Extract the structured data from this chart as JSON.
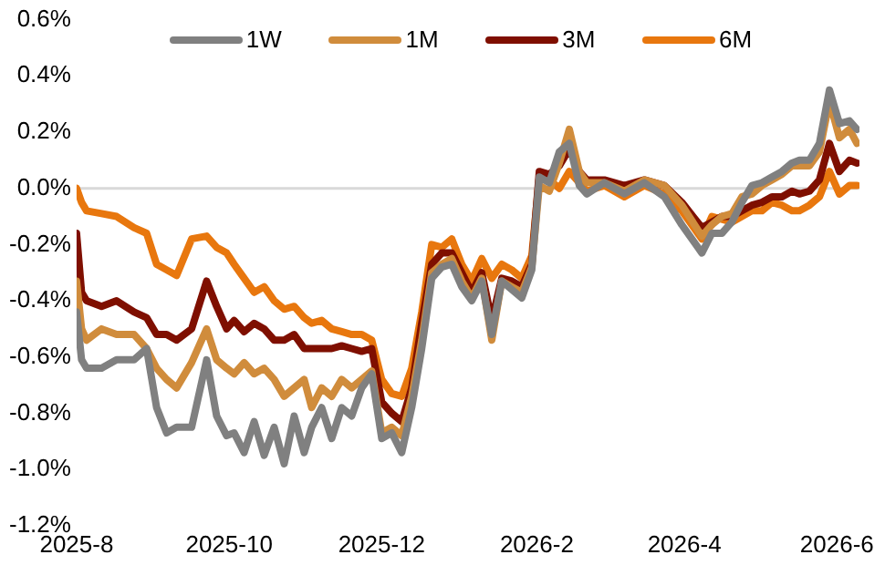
{
  "chart_data": {
    "type": "line",
    "x": [
      "2025-08-01",
      "2025-08-03",
      "2025-08-05",
      "2025-08-11",
      "2025-08-17",
      "2025-08-24",
      "2025-08-29",
      "2025-09-02",
      "2025-09-06",
      "2025-09-10",
      "2025-09-16",
      "2025-09-22",
      "2025-09-26",
      "2025-09-30",
      "2025-10-03",
      "2025-10-07",
      "2025-10-11",
      "2025-10-15",
      "2025-10-19",
      "2025-10-23",
      "2025-10-27",
      "2025-10-31",
      "2025-11-03",
      "2025-11-07",
      "2025-11-11",
      "2025-11-15",
      "2025-11-19",
      "2025-11-23",
      "2025-11-27",
      "2025-12-01",
      "2025-12-05",
      "2025-12-09",
      "2025-12-13",
      "2025-12-17",
      "2025-12-21",
      "2025-12-25",
      "2025-12-29",
      "2026-01-02",
      "2026-01-06",
      "2026-01-10",
      "2026-01-14",
      "2026-01-18",
      "2026-01-22",
      "2026-01-26",
      "2026-01-30",
      "2026-02-02",
      "2026-02-06",
      "2026-02-10",
      "2026-02-14",
      "2026-02-18",
      "2026-02-21",
      "2026-02-28",
      "2026-03-08",
      "2026-03-16",
      "2026-03-24",
      "2026-03-31",
      "2026-04-08",
      "2026-04-12",
      "2026-04-16",
      "2026-04-20",
      "2026-04-24",
      "2026-04-28",
      "2026-05-02",
      "2026-05-06",
      "2026-05-10",
      "2026-05-14",
      "2026-05-17",
      "2026-05-21",
      "2026-05-25",
      "2026-05-29",
      "2026-06-02",
      "2026-06-06",
      "2026-06-09"
    ],
    "series": [
      {
        "name": "1W",
        "color": "#808080",
        "values": [
          -0.44,
          -0.61,
          -0.64,
          -0.64,
          -0.61,
          -0.61,
          -0.57,
          -0.78,
          -0.87,
          -0.85,
          -0.85,
          -0.61,
          -0.81,
          -0.88,
          -0.87,
          -0.94,
          -0.83,
          -0.95,
          -0.85,
          -0.98,
          -0.81,
          -0.94,
          -0.85,
          -0.78,
          -0.89,
          -0.78,
          -0.81,
          -0.71,
          -0.66,
          -0.89,
          -0.87,
          -0.94,
          -0.78,
          -0.57,
          -0.32,
          -0.28,
          -0.27,
          -0.35,
          -0.4,
          -0.33,
          -0.52,
          -0.33,
          -0.36,
          -0.39,
          -0.29,
          0.04,
          0.02,
          0.13,
          0.16,
          0.01,
          -0.02,
          0.02,
          -0.02,
          0.02,
          -0.03,
          -0.13,
          -0.23,
          -0.16,
          -0.16,
          -0.12,
          -0.05,
          0.01,
          0.02,
          0.04,
          0.06,
          0.09,
          0.1,
          0.1,
          0.16,
          0.35,
          0.23,
          0.24,
          0.21
        ]
      },
      {
        "name": "1M",
        "color": "#d08c3c",
        "values": [
          -0.33,
          -0.5,
          -0.54,
          -0.5,
          -0.52,
          -0.52,
          -0.57,
          -0.64,
          -0.68,
          -0.71,
          -0.62,
          -0.5,
          -0.61,
          -0.64,
          -0.66,
          -0.62,
          -0.66,
          -0.64,
          -0.68,
          -0.74,
          -0.71,
          -0.68,
          -0.78,
          -0.71,
          -0.74,
          -0.68,
          -0.71,
          -0.68,
          -0.65,
          -0.87,
          -0.85,
          -0.88,
          -0.74,
          -0.54,
          -0.3,
          -0.27,
          -0.25,
          -0.33,
          -0.39,
          -0.32,
          -0.54,
          -0.33,
          -0.35,
          -0.37,
          -0.28,
          0.01,
          -0.01,
          0.09,
          0.21,
          0.06,
          0.02,
          0.02,
          -0.01,
          0.03,
          0.01,
          -0.06,
          -0.17,
          -0.13,
          -0.1,
          -0.09,
          -0.03,
          -0.02,
          0.01,
          0.03,
          0.05,
          0.08,
          0.08,
          0.08,
          0.13,
          0.31,
          0.18,
          0.21,
          0.16
        ]
      },
      {
        "name": "3M",
        "color": "#7f0f00",
        "values": [
          -0.16,
          -0.37,
          -0.4,
          -0.42,
          -0.4,
          -0.44,
          -0.46,
          -0.52,
          -0.52,
          -0.54,
          -0.5,
          -0.33,
          -0.42,
          -0.5,
          -0.47,
          -0.51,
          -0.48,
          -0.5,
          -0.54,
          -0.54,
          -0.52,
          -0.57,
          -0.57,
          -0.57,
          -0.57,
          -0.56,
          -0.57,
          -0.58,
          -0.57,
          -0.76,
          -0.8,
          -0.83,
          -0.71,
          -0.48,
          -0.27,
          -0.23,
          -0.23,
          -0.3,
          -0.37,
          -0.3,
          -0.47,
          -0.32,
          -0.33,
          -0.35,
          -0.27,
          0.06,
          0.05,
          0.08,
          0.14,
          0.06,
          0.03,
          0.03,
          0.01,
          0.03,
          0.01,
          -0.05,
          -0.14,
          -0.12,
          -0.1,
          -0.1,
          -0.08,
          -0.06,
          -0.05,
          -0.03,
          -0.03,
          -0.01,
          -0.02,
          -0.01,
          0.03,
          0.16,
          0.06,
          0.1,
          0.09
        ]
      },
      {
        "name": "6M",
        "color": "#e8770e",
        "values": [
          0.0,
          -0.05,
          -0.08,
          -0.09,
          -0.1,
          -0.14,
          -0.16,
          -0.27,
          -0.29,
          -0.31,
          -0.18,
          -0.17,
          -0.21,
          -0.23,
          -0.27,
          -0.32,
          -0.37,
          -0.35,
          -0.4,
          -0.43,
          -0.42,
          -0.46,
          -0.48,
          -0.47,
          -0.5,
          -0.51,
          -0.52,
          -0.52,
          -0.54,
          -0.68,
          -0.73,
          -0.74,
          -0.64,
          -0.44,
          -0.2,
          -0.21,
          -0.18,
          -0.27,
          -0.33,
          -0.25,
          -0.32,
          -0.27,
          -0.29,
          -0.32,
          -0.24,
          0.04,
          0.03,
          0.0,
          0.06,
          0.02,
          -0.01,
          0.01,
          -0.03,
          0.01,
          -0.02,
          -0.08,
          -0.18,
          -0.1,
          -0.11,
          -0.12,
          -0.1,
          -0.08,
          -0.08,
          -0.05,
          -0.06,
          -0.08,
          -0.08,
          -0.06,
          -0.03,
          0.06,
          -0.02,
          0.01,
          0.01
        ]
      }
    ],
    "xlim": [
      "2025-08-01",
      "2026-06-10"
    ],
    "xticks": [
      {
        "value": "2025-08-01",
        "label": "2025-8"
      },
      {
        "value": "2025-10-01",
        "label": "2025-10"
      },
      {
        "value": "2025-12-01",
        "label": "2025-12"
      },
      {
        "value": "2026-02-01",
        "label": "2026-2"
      },
      {
        "value": "2026-04-01",
        "label": "2026-4"
      },
      {
        "value": "2026-06-01",
        "label": "2026-6"
      }
    ],
    "ylim": [
      -1.2,
      0.6
    ],
    "yticks": [
      {
        "value": 0.6,
        "label": "0.6%"
      },
      {
        "value": 0.4,
        "label": "0.4%"
      },
      {
        "value": 0.2,
        "label": "0.2%"
      },
      {
        "value": 0.0,
        "label": "0.0%"
      },
      {
        "value": -0.2,
        "label": "-0.2%"
      },
      {
        "value": -0.4,
        "label": "-0.4%"
      },
      {
        "value": -0.6,
        "label": "-0.6%"
      },
      {
        "value": -0.8,
        "label": "-0.8%"
      },
      {
        "value": -1.0,
        "label": "-1.0%"
      },
      {
        "value": -1.2,
        "label": "-1.2%"
      }
    ],
    "ref_lines": [
      {
        "axis": "y",
        "value": 0,
        "color": "#d9d9d9"
      }
    ],
    "grid": false,
    "legend": "top",
    "marker": "none",
    "line_style": "solid"
  }
}
